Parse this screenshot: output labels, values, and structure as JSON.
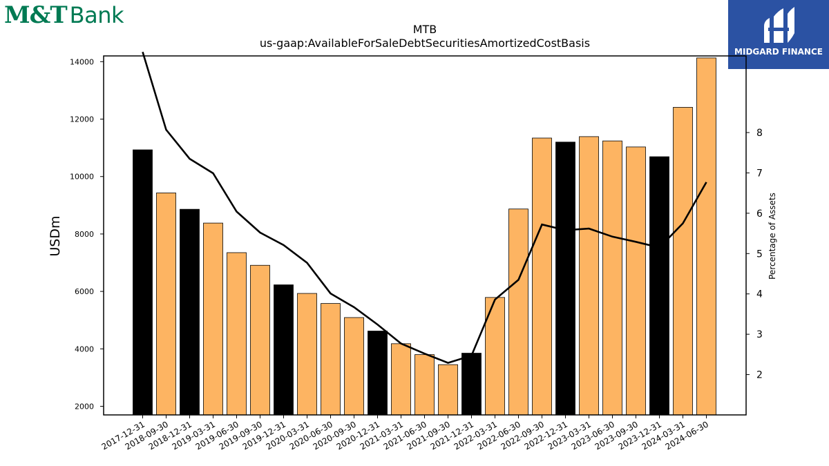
{
  "branding": {
    "logo_mt": "M&T",
    "logo_bank": "Bank",
    "badge_text": "MIDGARD FINANCE",
    "brand_color": "#007a53",
    "badge_color": "#2b52a3"
  },
  "chart_data": {
    "type": "bar",
    "title": "MTB",
    "subtitle": "us-gaap:AvailableForSaleDebtSecuritiesAmortizedCostBasis",
    "ylabel": "USDm",
    "y2label": "Percentage of Assets",
    "ylim": [
      1700,
      14200
    ],
    "y2lim": [
      1.0,
      9.9
    ],
    "yticks": [
      2000,
      4000,
      6000,
      8000,
      10000,
      12000,
      14000
    ],
    "y2ticks": [
      2,
      3,
      4,
      5,
      6,
      7,
      8
    ],
    "grid": false,
    "categories": [
      "2017-12-31",
      "2018-09-30",
      "2018-12-31",
      "2019-03-31",
      "2019-06-30",
      "2019-09-30",
      "2019-12-31",
      "2020-03-31",
      "2020-06-30",
      "2020-09-30",
      "2020-12-31",
      "2021-03-31",
      "2021-06-30",
      "2021-09-30",
      "2021-12-31",
      "2022-03-31",
      "2022-06-30",
      "2022-09-30",
      "2022-12-31",
      "2023-03-31",
      "2023-06-30",
      "2023-09-30",
      "2023-12-31",
      "2024-03-31",
      "2024-06-30"
    ],
    "series": [
      {
        "kind": "bar",
        "values": [
          10930,
          9430,
          8860,
          8380,
          7350,
          6910,
          6230,
          5930,
          5580,
          5090,
          4620,
          4180,
          3800,
          3450,
          3850,
          5790,
          8870,
          11340,
          11200,
          11390,
          11240,
          11030,
          10690,
          12410,
          14130
        ],
        "year_end_color": "#000000",
        "quarter_color": "#fdb462"
      },
      {
        "kind": "line",
        "values": [
          10.0,
          8.07,
          7.35,
          6.99,
          6.04,
          5.52,
          5.21,
          4.77,
          4.01,
          3.67,
          3.24,
          2.77,
          2.52,
          2.29,
          2.47,
          3.86,
          4.35,
          5.72,
          5.58,
          5.62,
          5.42,
          5.29,
          5.15,
          5.75,
          6.77
        ],
        "color": "#000000"
      }
    ]
  }
}
